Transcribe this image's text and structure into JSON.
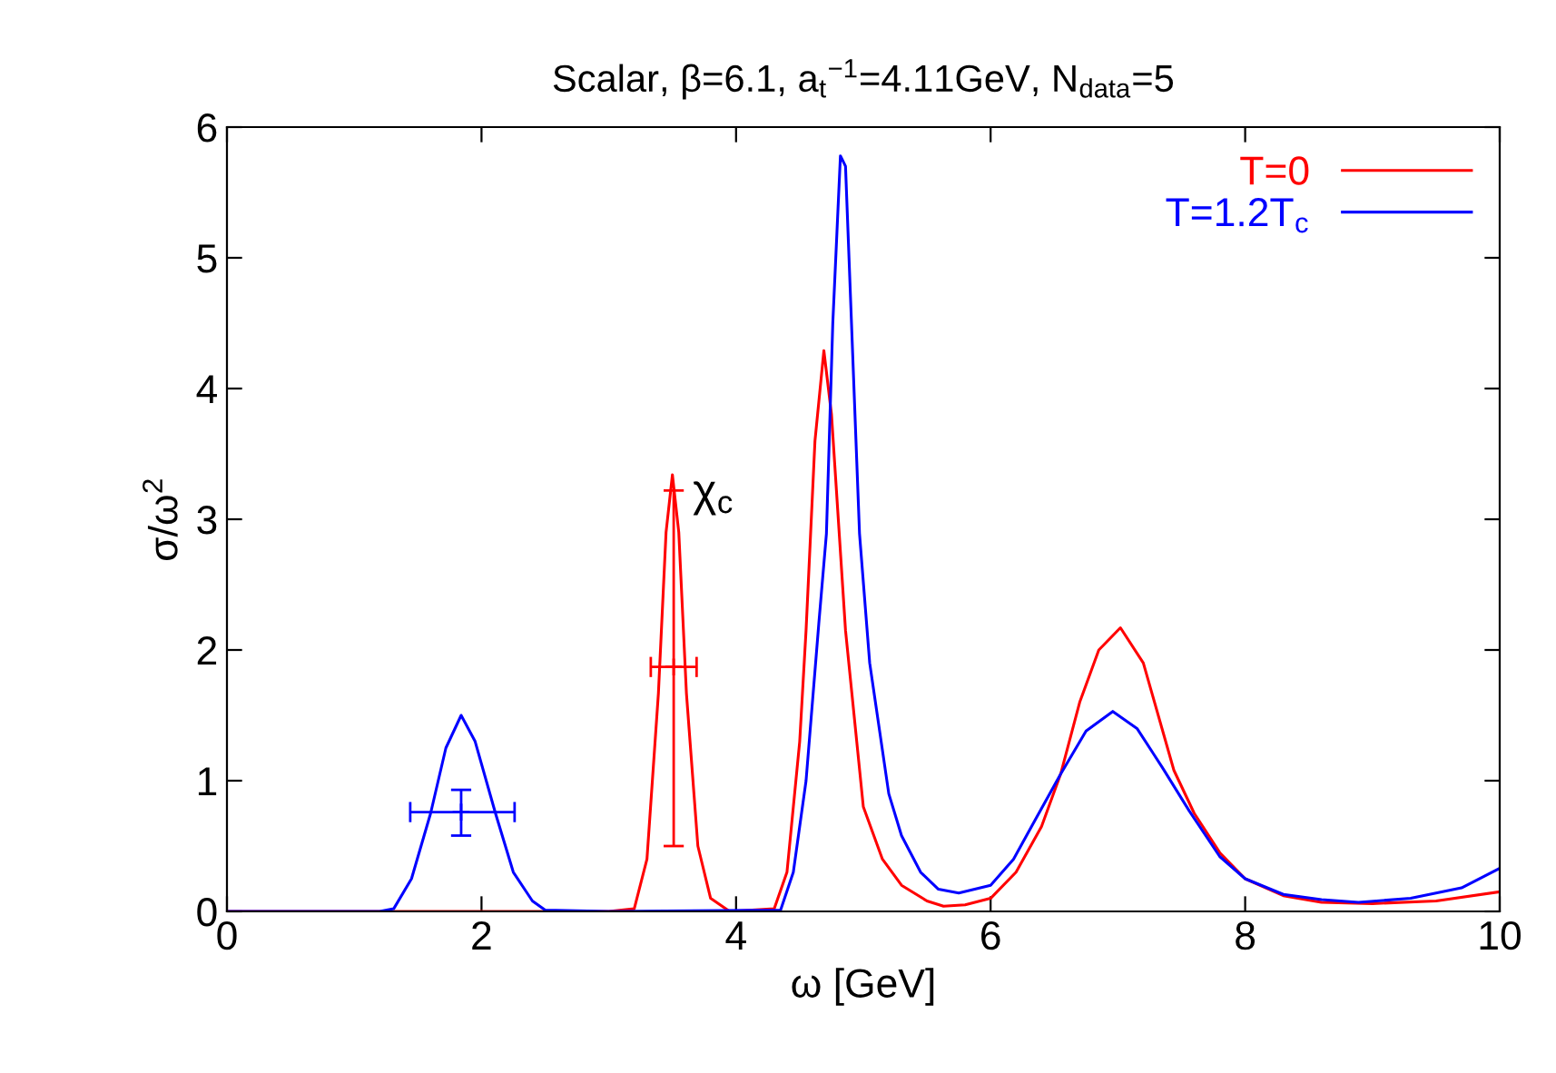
{
  "chart_data": {
    "type": "line",
    "title": "Scalar, β=6.1, a$_{t}$$^{−1}$=4.11GeV, N$_{data}$=5",
    "xlabel": "ω [GeV]",
    "ylabel": "σ/ω$^{2}$",
    "xlim": [
      0,
      10
    ],
    "ylim": [
      0,
      6
    ],
    "xticks": [
      0,
      2,
      4,
      6,
      8,
      10
    ],
    "yticks": [
      0,
      1,
      2,
      3,
      4,
      5,
      6
    ],
    "grid": false,
    "legend": "top right",
    "line_style": "solid",
    "annotations": [
      "χ$_{c}$"
    ],
    "series": [
      {
        "name": "T=0",
        "color": "#ff0000",
        "x": [
          0,
          3.0,
          3.2,
          3.3,
          3.39,
          3.45,
          3.5,
          3.55,
          3.61,
          3.7,
          3.8,
          3.95,
          4.3,
          4.4,
          4.5,
          4.55,
          4.62,
          4.69,
          4.75,
          4.86,
          5.0,
          5.15,
          5.3,
          5.5,
          5.63,
          5.8,
          6.0,
          6.2,
          6.4,
          6.55,
          6.7,
          6.85,
          7.02,
          7.2,
          7.44,
          7.6,
          7.8,
          8.0,
          8.3,
          8.6,
          9.0,
          9.5,
          10
        ],
        "values": [
          0,
          0,
          0.02,
          0.4,
          1.67,
          2.9,
          3.34,
          2.9,
          1.67,
          0.5,
          0.1,
          0,
          0.02,
          0.3,
          1.3,
          2.15,
          3.6,
          4.29,
          3.8,
          2.15,
          0.8,
          0.4,
          0.2,
          0.08,
          0.04,
          0.05,
          0.1,
          0.3,
          0.65,
          1.05,
          1.6,
          2.0,
          2.17,
          1.9,
          1.08,
          0.75,
          0.45,
          0.25,
          0.12,
          0.07,
          0.06,
          0.08,
          0.15
        ]
      },
      {
        "name": "T=1.2T$_{c}$",
        "color": "#0000ff",
        "x": [
          0,
          1.2,
          1.31,
          1.45,
          1.6,
          1.72,
          1.84,
          1.95,
          2.11,
          2.25,
          2.4,
          2.5,
          3,
          4.35,
          4.45,
          4.55,
          4.65,
          4.71,
          4.76,
          4.82,
          4.86,
          4.97,
          5.05,
          5.2,
          5.3,
          5.45,
          5.59,
          5.75,
          6.0,
          6.18,
          6.35,
          6.55,
          6.75,
          6.96,
          7.15,
          7.35,
          7.56,
          7.8,
          8.0,
          8.3,
          8.6,
          8.89,
          9.3,
          9.7,
          10
        ],
        "values": [
          0,
          0,
          0.02,
          0.25,
          0.75,
          1.25,
          1.5,
          1.3,
          0.75,
          0.3,
          0.08,
          0.01,
          0,
          0.01,
          0.3,
          1.0,
          2.2,
          2.89,
          4.5,
          5.78,
          5.7,
          2.89,
          1.9,
          0.9,
          0.58,
          0.3,
          0.17,
          0.14,
          0.2,
          0.4,
          0.7,
          1.05,
          1.38,
          1.53,
          1.4,
          1.1,
          0.77,
          0.42,
          0.25,
          0.13,
          0.09,
          0.07,
          0.1,
          0.18,
          0.33
        ]
      },
      {
        "color": "#0000ff",
        "type": "scatter",
        "marker": "cross",
        "x": [
          1.84
        ],
        "values": [
          0.76
        ],
        "errors": [
          [
            0.58,
            0.93
          ]
        ],
        "xerrors": [
          [
            1.44,
            2.26
          ]
        ]
      },
      {
        "color": "#ff0000",
        "type": "scatter",
        "marker": "cross",
        "x": [
          3.51
        ],
        "values": [
          1.87
        ],
        "errors": [
          [
            0.5,
            3.22
          ]
        ],
        "xerrors": [
          [
            3.33,
            3.69
          ]
        ]
      }
    ]
  }
}
